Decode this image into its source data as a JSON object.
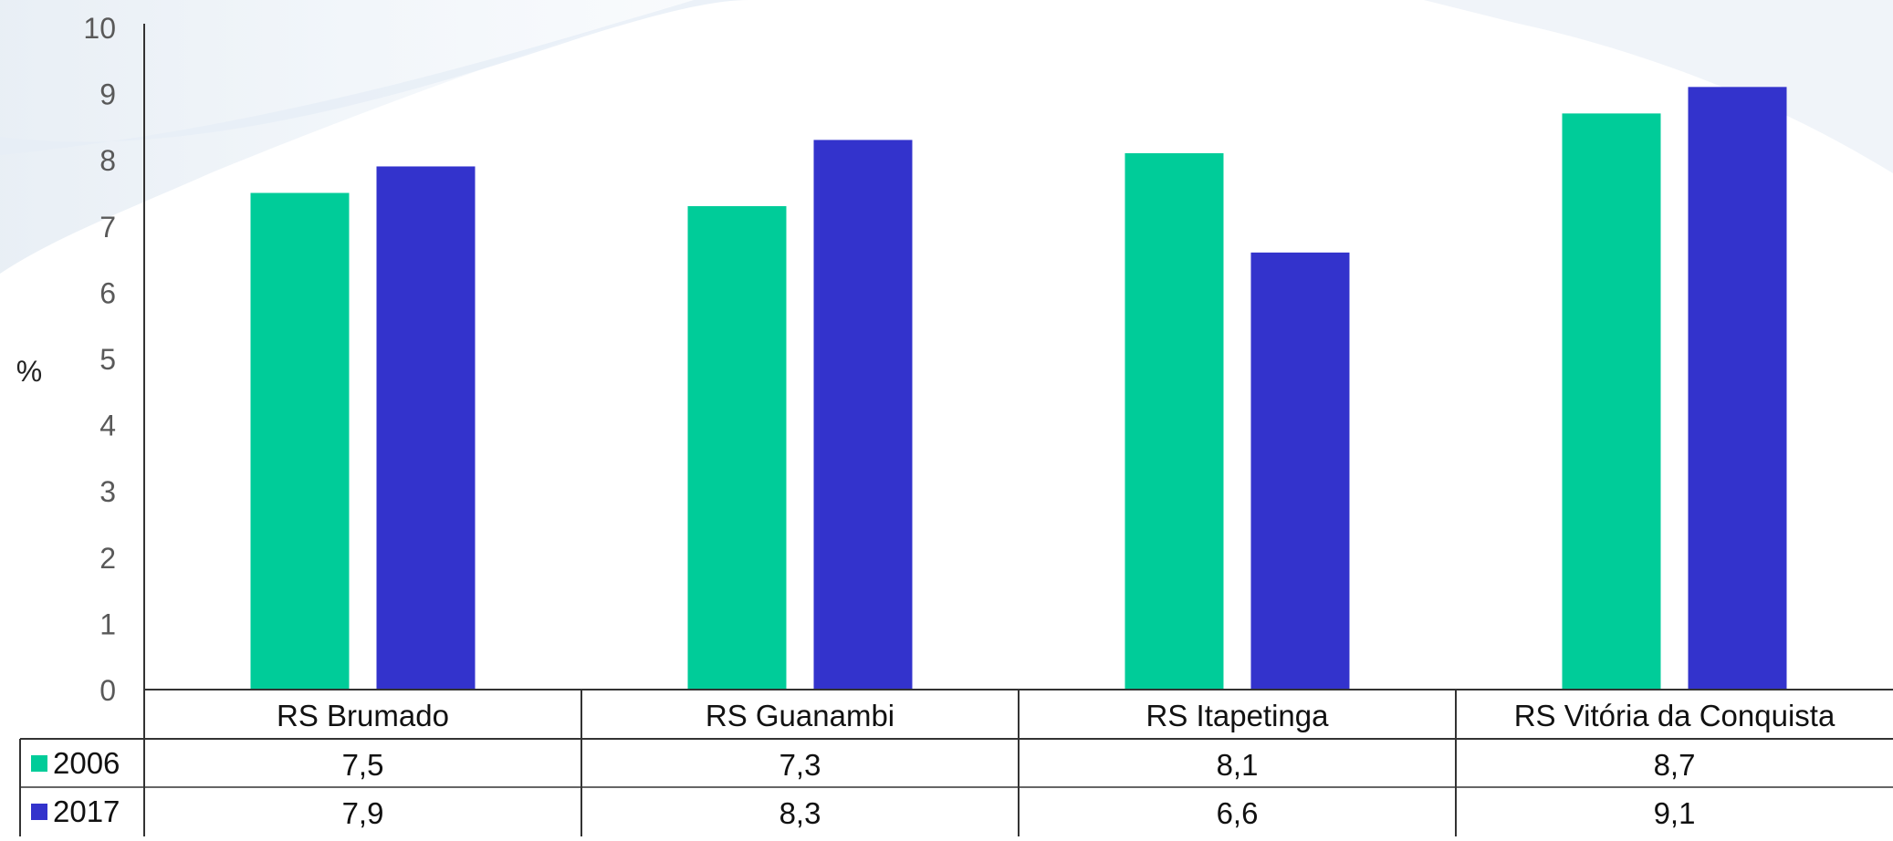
{
  "chart_data": {
    "type": "bar",
    "ylabel": "%",
    "ylim": [
      0,
      10
    ],
    "yticks": [
      "0",
      "1",
      "2",
      "3",
      "4",
      "5",
      "6",
      "7",
      "8",
      "9",
      "10"
    ],
    "categories": [
      "RS Brumado",
      "RS Guanambi",
      "RS Itapetinga",
      "RS Vitória da Conquista"
    ],
    "series": [
      {
        "name": "2006",
        "values": [
          7.5,
          7.3,
          8.1,
          8.7
        ],
        "labels": [
          "7,5",
          "7,3",
          "8,1",
          "8,7"
        ],
        "color": "#00cc99"
      },
      {
        "name": "2017",
        "values": [
          7.9,
          8.3,
          6.6,
          9.1
        ],
        "labels": [
          "7,9",
          "8,3",
          "6,6",
          "9,1"
        ],
        "color": "#3333cc"
      }
    ],
    "grid": false,
    "legend": "data-table"
  }
}
